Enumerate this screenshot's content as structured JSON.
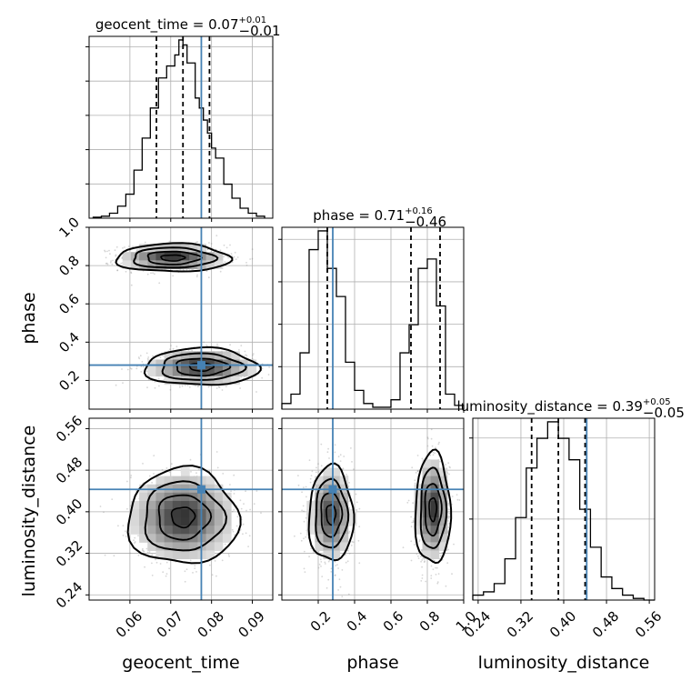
{
  "figure": {
    "type": "corner-plot",
    "parameters": [
      "geocent_time",
      "phase",
      "luminosity_distance"
    ],
    "truth_color": "#4682b4"
  },
  "chart_data": [
    {
      "type": "histogram",
      "panel": "geocent_time",
      "title": {
        "name": "geocent_time",
        "value": "0.07",
        "plus": "+0.01",
        "minus": "−0.01"
      },
      "xlim": [
        0.05,
        0.095
      ],
      "bin_edges": [
        0.051,
        0.053,
        0.055,
        0.057,
        0.059,
        0.061,
        0.063,
        0.065,
        0.067,
        0.069,
        0.071,
        0.072,
        0.073,
        0.074,
        0.075,
        0.076,
        0.077,
        0.078,
        0.079,
        0.08,
        0.081,
        0.083,
        0.085,
        0.087,
        0.089,
        0.091,
        0.093
      ],
      "counts": [
        1,
        2,
        5,
        12,
        24,
        48,
        80,
        110,
        140,
        152,
        163,
        178,
        173,
        155,
        155,
        120,
        110,
        98,
        85,
        70,
        60,
        34,
        20,
        10,
        5,
        2
      ],
      "quantiles": [
        0.0665,
        0.073,
        0.0795
      ],
      "truth": 0.0775
    },
    {
      "type": "histogram",
      "panel": "phase",
      "title": {
        "name": "phase",
        "value": "0.71",
        "plus": "+0.16",
        "minus": "−0.46"
      },
      "xlim": [
        0.0,
        1.0
      ],
      "bin_edges": [
        0.0,
        0.05,
        0.1,
        0.15,
        0.2,
        0.25,
        0.3,
        0.35,
        0.4,
        0.45,
        0.5,
        0.55,
        0.6,
        0.65,
        0.7,
        0.75,
        0.8,
        0.85,
        0.9,
        0.95,
        1.0
      ],
      "counts": [
        3,
        8,
        30,
        85,
        95,
        75,
        60,
        25,
        10,
        3,
        1,
        1,
        5,
        30,
        45,
        75,
        80,
        55,
        8,
        2
      ],
      "quantiles": [
        0.25,
        0.71,
        0.87
      ],
      "truth": 0.28
    },
    {
      "type": "histogram",
      "panel": "luminosity_distance",
      "title": {
        "name": "luminosity_distance",
        "value": "0.39",
        "plus": "+0.05",
        "minus": "−0.05"
      },
      "xlim": [
        0.23,
        0.57
      ],
      "bin_edges": [
        0.23,
        0.25,
        0.27,
        0.29,
        0.31,
        0.33,
        0.35,
        0.37,
        0.39,
        0.41,
        0.43,
        0.45,
        0.47,
        0.49,
        0.51,
        0.53,
        0.55,
        0.57
      ],
      "counts": [
        3,
        5,
        10,
        25,
        50,
        80,
        98,
        108,
        98,
        85,
        55,
        32,
        14,
        7,
        3,
        1,
        0
      ],
      "quantiles": [
        0.34,
        0.39,
        0.44
      ],
      "truth": 0.443
    },
    {
      "type": "2d-density",
      "xparam": "geocent_time",
      "yparam": "phase",
      "xlim": [
        0.05,
        0.095
      ],
      "ylim": [
        0.05,
        1.0
      ],
      "truth": [
        0.0775,
        0.28
      ],
      "modes": [
        {
          "cx": 0.0705,
          "cy": 0.84,
          "sx": 0.0065,
          "sy": 0.034,
          "w": 1.0
        },
        {
          "cx": 0.0775,
          "cy": 0.27,
          "sx": 0.0065,
          "sy": 0.045,
          "w": 1.0
        }
      ]
    },
    {
      "type": "2d-density",
      "xparam": "geocent_time",
      "yparam": "luminosity_distance",
      "xlim": [
        0.05,
        0.095
      ],
      "ylim": [
        0.23,
        0.58
      ],
      "truth": [
        0.0775,
        0.443
      ],
      "modes": [
        {
          "cx": 0.073,
          "cy": 0.39,
          "sx": 0.0063,
          "sy": 0.043,
          "w": 1.0
        }
      ]
    },
    {
      "type": "2d-density",
      "xparam": "phase",
      "yparam": "luminosity_distance",
      "xlim": [
        0.0,
        1.0
      ],
      "ylim": [
        0.23,
        0.58
      ],
      "truth": [
        0.28,
        0.443
      ],
      "modes": [
        {
          "cx": 0.27,
          "cy": 0.395,
          "sx": 0.06,
          "sy": 0.045,
          "w": 0.9
        },
        {
          "cx": 0.83,
          "cy": 0.405,
          "sx": 0.045,
          "sy": 0.05,
          "w": 1.0
        }
      ]
    }
  ],
  "axes": {
    "geocent_time": {
      "label": "geocent_time",
      "ticks": [
        "0.06",
        "0.07",
        "0.08",
        "0.09"
      ],
      "tick_values": [
        0.06,
        0.07,
        0.08,
        0.09
      ]
    },
    "phase_x": {
      "label": "phase",
      "ticks": [
        "0.2",
        "0.4",
        "0.6",
        "0.8",
        "1.0"
      ],
      "tick_values": [
        0.2,
        0.4,
        0.6,
        0.8,
        1.0
      ]
    },
    "phase_y": {
      "label": "phase",
      "ticks": [
        "0.2",
        "0.4",
        "0.6",
        "0.8",
        "1.0"
      ],
      "tick_values": [
        0.2,
        0.4,
        0.6,
        0.8,
        1.0
      ]
    },
    "luminosity_distance_x": {
      "label": "luminosity_distance",
      "ticks": [
        "0.24",
        "0.32",
        "0.40",
        "0.48",
        "0.56"
      ],
      "tick_values": [
        0.24,
        0.32,
        0.4,
        0.48,
        0.56
      ]
    },
    "luminosity_distance_y": {
      "label": "luminosity_distance",
      "ticks": [
        "0.24",
        "0.32",
        "0.40",
        "0.48",
        "0.56"
      ],
      "tick_values": [
        0.24,
        0.32,
        0.4,
        0.48,
        0.56
      ]
    }
  }
}
